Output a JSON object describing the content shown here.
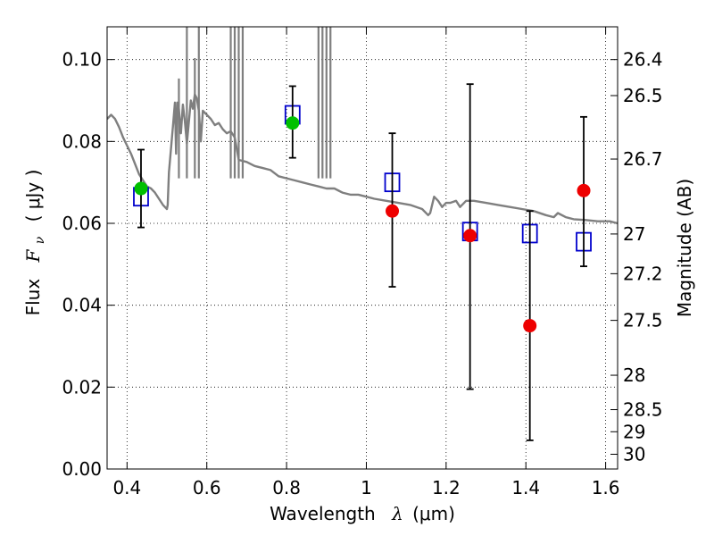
{
  "chart_data": {
    "type": "scatter",
    "xlabel": "Wavelength",
    "xlabel_math": "λ",
    "xlabel_unit": "(μm)",
    "ylabel": "Flux",
    "ylabel_math": "F",
    "ylabel_math_sub": "ν",
    "ylabel_unit": "( μJy )",
    "y2label": "Magnitude (AB)",
    "xlim": [
      0.35,
      1.63
    ],
    "ylim": [
      0.0,
      0.108
    ],
    "grid": true,
    "x_ticks": [
      0.4,
      0.6,
      0.8,
      1.0,
      1.2,
      1.4,
      1.6
    ],
    "x_tick_labels": [
      "0.4",
      "0.6",
      "0.8",
      "1",
      "1.2",
      "1.4",
      "1.6"
    ],
    "y_ticks": [
      0.0,
      0.02,
      0.04,
      0.06,
      0.08,
      0.1
    ],
    "y_tick_labels": [
      "0.00",
      "0.02",
      "0.04",
      "0.06",
      "0.08",
      "0.10"
    ],
    "y2_tick_labels": [
      {
        "label": "26.4",
        "flux": 0.1
      },
      {
        "label": "26.5",
        "flux": 0.0912
      },
      {
        "label": "26.7",
        "flux": 0.0757
      },
      {
        "label": "27",
        "flux": 0.0574
      },
      {
        "label": "27.2",
        "flux": 0.0477
      },
      {
        "label": "27.5",
        "flux": 0.0363
      },
      {
        "label": "28",
        "flux": 0.0229
      },
      {
        "label": "28.5",
        "flux": 0.0145
      },
      {
        "label": "29",
        "flux": 0.0091
      },
      {
        "label": "30",
        "flux": 0.0036
      }
    ],
    "series": [
      {
        "kind": "line",
        "color": "#7f7f7f",
        "points": [
          [
            0.35,
            0.0855
          ],
          [
            0.36,
            0.0865
          ],
          [
            0.37,
            0.0855
          ],
          [
            0.38,
            0.0835
          ],
          [
            0.39,
            0.081
          ],
          [
            0.4,
            0.079
          ],
          [
            0.41,
            0.077
          ],
          [
            0.42,
            0.0745
          ],
          [
            0.43,
            0.072
          ],
          [
            0.44,
            0.0705
          ],
          [
            0.45,
            0.069
          ],
          [
            0.46,
            0.0685
          ],
          [
            0.47,
            0.0675
          ],
          [
            0.48,
            0.066
          ],
          [
            0.49,
            0.0645
          ],
          [
            0.5,
            0.0635
          ],
          [
            0.502,
            0.0645
          ],
          [
            0.505,
            0.0725
          ],
          [
            0.51,
            0.078
          ],
          [
            0.515,
            0.0835
          ],
          [
            0.52,
            0.0895
          ],
          [
            0.523,
            0.077
          ],
          [
            0.526,
            0.0895
          ],
          [
            0.53,
            0.088
          ],
          [
            0.535,
            0.082
          ],
          [
            0.54,
            0.089
          ],
          [
            0.545,
            0.085
          ],
          [
            0.55,
            0.0795
          ],
          [
            0.56,
            0.09
          ],
          [
            0.565,
            0.088
          ],
          [
            0.57,
            0.0915
          ],
          [
            0.575,
            0.0905
          ],
          [
            0.58,
            0.0875
          ],
          [
            0.585,
            0.08
          ],
          [
            0.59,
            0.0875
          ],
          [
            0.6,
            0.0865
          ],
          [
            0.61,
            0.0855
          ],
          [
            0.62,
            0.084
          ],
          [
            0.63,
            0.0845
          ],
          [
            0.64,
            0.083
          ],
          [
            0.65,
            0.082
          ],
          [
            0.66,
            0.0825
          ],
          [
            0.67,
            0.081
          ],
          [
            0.68,
            0.0755
          ],
          [
            0.7,
            0.075
          ],
          [
            0.72,
            0.074
          ],
          [
            0.74,
            0.0735
          ],
          [
            0.76,
            0.073
          ],
          [
            0.78,
            0.0715
          ],
          [
            0.8,
            0.071
          ],
          [
            0.82,
            0.0705
          ],
          [
            0.84,
            0.07
          ],
          [
            0.86,
            0.0695
          ],
          [
            0.88,
            0.069
          ],
          [
            0.9,
            0.0685
          ],
          [
            0.92,
            0.0685
          ],
          [
            0.94,
            0.0675
          ],
          [
            0.96,
            0.067
          ],
          [
            0.98,
            0.067
          ],
          [
            1.0,
            0.0665
          ],
          [
            1.02,
            0.066
          ],
          [
            1.05,
            0.0655
          ],
          [
            1.08,
            0.065
          ],
          [
            1.11,
            0.0645
          ],
          [
            1.14,
            0.0635
          ],
          [
            1.155,
            0.062
          ],
          [
            1.16,
            0.0625
          ],
          [
            1.17,
            0.0665
          ],
          [
            1.18,
            0.0655
          ],
          [
            1.19,
            0.064
          ],
          [
            1.2,
            0.065
          ],
          [
            1.21,
            0.065
          ],
          [
            1.225,
            0.0655
          ],
          [
            1.235,
            0.064
          ],
          [
            1.25,
            0.0655
          ],
          [
            1.27,
            0.0655
          ],
          [
            1.3,
            0.065
          ],
          [
            1.33,
            0.0645
          ],
          [
            1.36,
            0.064
          ],
          [
            1.39,
            0.0635
          ],
          [
            1.42,
            0.063
          ],
          [
            1.45,
            0.062
          ],
          [
            1.47,
            0.0615
          ],
          [
            1.48,
            0.0625
          ],
          [
            1.5,
            0.0615
          ],
          [
            1.52,
            0.061
          ],
          [
            1.55,
            0.0608
          ],
          [
            1.58,
            0.0605
          ],
          [
            1.61,
            0.0605
          ],
          [
            1.63,
            0.06
          ]
        ],
        "spikes": [
          [
            0.53,
            0.091
          ],
          [
            0.55,
            0.108
          ],
          [
            0.57,
            0.096
          ],
          [
            0.58,
            0.108
          ],
          [
            0.66,
            0.108
          ],
          [
            0.67,
            0.108
          ],
          [
            0.68,
            0.108
          ],
          [
            0.69,
            0.108
          ],
          [
            0.88,
            0.108
          ],
          [
            0.89,
            0.108
          ],
          [
            0.9,
            0.108
          ],
          [
            0.91,
            0.108
          ]
        ]
      },
      {
        "kind": "open-square",
        "color": "#0000cc",
        "x": [
          0.435,
          0.815,
          1.065,
          1.26,
          1.41,
          1.545
        ],
        "y": [
          0.0665,
          0.0865,
          0.07,
          0.058,
          0.0575,
          0.0555
        ]
      },
      {
        "kind": "filled-circle",
        "color": "#00c000",
        "x": [
          0.435,
          0.815
        ],
        "y": [
          0.0685,
          0.0845
        ],
        "yerr_low": [
          0.059,
          0.076
        ],
        "yerr_high": [
          0.078,
          0.0935
        ]
      },
      {
        "kind": "filled-circle",
        "color": "#ee0000",
        "x": [
          1.065,
          1.26,
          1.41,
          1.545
        ],
        "y": [
          0.063,
          0.057,
          0.035,
          0.068
        ],
        "yerr_low": [
          0.0445,
          0.0195,
          0.007,
          0.0495
        ],
        "yerr_high": [
          0.082,
          0.094,
          0.063,
          0.086
        ]
      }
    ]
  }
}
